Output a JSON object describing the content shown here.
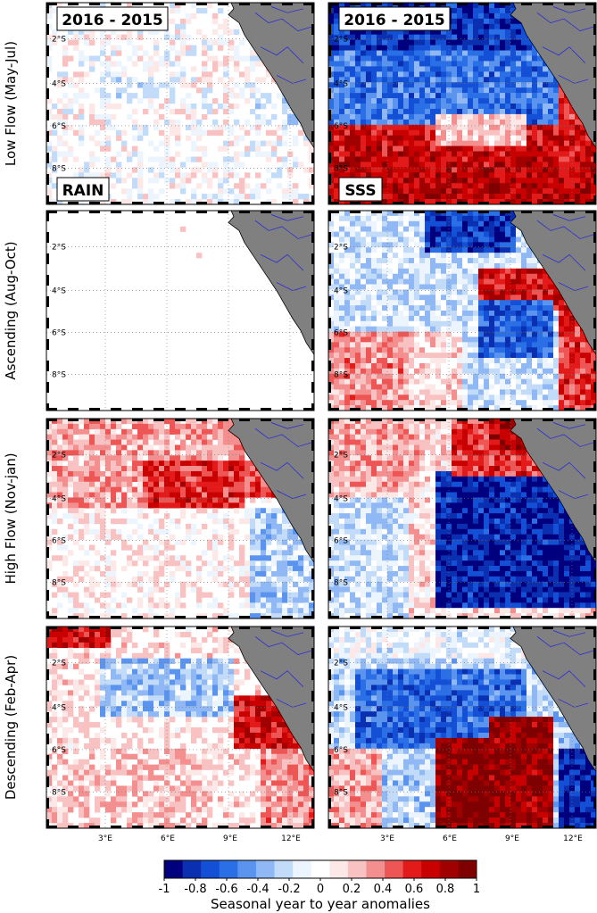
{
  "header_labels": [
    "2016 - 2015",
    "2016 - 2015"
  ],
  "variable_labels": [
    "RAIN",
    "SSS"
  ],
  "row_labels": [
    "Low Flow (May-Jul)",
    "Ascending (Aug-Oct)",
    "High Flow (Nov-jan)",
    "Descending (Feb-Apr)"
  ],
  "lat_ticks": [
    "2°S",
    "4°S",
    "6°S",
    "8°S"
  ],
  "lon_ticks": [
    "3°E",
    "6°E",
    "9°E",
    "12°E"
  ],
  "colorbar": {
    "label": "Seasonal year to year anomalies",
    "ticks": [
      "-1",
      "-0.8",
      "-0.6",
      "-0.4",
      "-0.2",
      "0",
      "0.2",
      "0.4",
      "0.6",
      "0.8",
      "1"
    ],
    "colors": [
      "#00007f",
      "#0a2fb0",
      "#1450d6",
      "#2a6fe6",
      "#5a94ee",
      "#8fb8f4",
      "#c2dbf9",
      "#ecf4fd",
      "#ffffff",
      "#fde8e8",
      "#f9c2c2",
      "#f48f8f",
      "#ee5555",
      "#e31a1a",
      "#c80000",
      "#a00000",
      "#7f0000"
    ]
  },
  "colors": {
    "land": "#808080",
    "river": "#2020e0",
    "frame": "#000000"
  }
}
